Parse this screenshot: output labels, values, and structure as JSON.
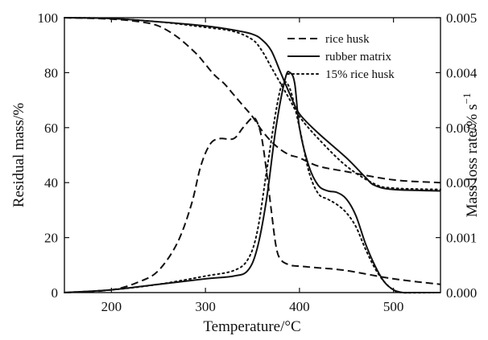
{
  "chart_data": {
    "type": "line",
    "xlabel": "Temperature/°C",
    "ylabel_left": "Residual mass/%",
    "ylabel_right": "Mass loss rate/% s",
    "ylabel_right_exponent": "−1",
    "xlim": [
      150,
      550
    ],
    "ylim_left": [
      0,
      100
    ],
    "ylim_right": [
      0,
      0.005
    ],
    "x_ticks": [
      200,
      300,
      400,
      500
    ],
    "y_left_ticks": [
      0,
      20,
      40,
      60,
      80,
      100
    ],
    "y_right_ticks": [
      "0.000",
      "0.001",
      "0.002",
      "0.003",
      "0.004",
      "0.005"
    ],
    "legend_position": "top-right",
    "series": [
      {
        "name": "rice husk",
        "style": "dashed",
        "residual_mass": {
          "x": [
            150,
            200,
            230,
            250,
            270,
            290,
            300,
            310,
            320,
            330,
            340,
            350,
            360,
            370,
            380,
            390,
            400,
            420,
            450,
            500,
            550
          ],
          "y": [
            100,
            99.5,
            98.5,
            97,
            93,
            87,
            83,
            79,
            76,
            72,
            68,
            64,
            59,
            55,
            52,
            50,
            49,
            46,
            44,
            41,
            40
          ]
        },
        "mass_loss_rate": {
          "x": [
            150,
            200,
            230,
            250,
            270,
            285,
            295,
            305,
            315,
            330,
            340,
            350,
            355,
            360,
            365,
            370,
            375,
            380,
            390,
            400,
            420,
            450,
            500,
            550
          ],
          "y": [
            0.0,
            5e-05,
            0.0002,
            0.0004,
            0.0009,
            0.0016,
            0.0023,
            0.0027,
            0.0028,
            0.0028,
            0.003,
            0.00318,
            0.0031,
            0.0028,
            0.0022,
            0.0015,
            0.00085,
            0.0006,
            0.0005,
            0.00048,
            0.00045,
            0.0004,
            0.00025,
            0.00015
          ]
        }
      },
      {
        "name": "rubber matrix",
        "style": "solid",
        "residual_mass": {
          "x": [
            150,
            200,
            250,
            300,
            330,
            350,
            360,
            370,
            380,
            390,
            400,
            420,
            450,
            470,
            480,
            500,
            550
          ],
          "y": [
            100,
            99.7,
            98.5,
            97,
            95.5,
            94,
            92,
            88,
            80,
            72,
            65,
            58,
            49,
            42,
            39,
            37.5,
            37
          ]
        },
        "mass_loss_rate": {
          "x": [
            150,
            200,
            250,
            300,
            330,
            345,
            355,
            365,
            375,
            385,
            390,
            395,
            400,
            410,
            420,
            430,
            440,
            450,
            460,
            470,
            480,
            490,
            500,
            510,
            520,
            550
          ],
          "y": [
            0.0,
            5e-05,
            0.00015,
            0.00025,
            0.0003,
            0.0004,
            0.0008,
            0.0017,
            0.003,
            0.0039,
            0.004,
            0.0038,
            0.003,
            0.0023,
            0.00195,
            0.00185,
            0.00182,
            0.0017,
            0.0014,
            0.0009,
            0.0005,
            0.0002,
            5e-05,
            0.0,
            0.0,
            0.0
          ]
        }
      },
      {
        "name": "15% rice husk",
        "style": "dotted",
        "residual_mass": {
          "x": [
            150,
            200,
            250,
            300,
            330,
            350,
            360,
            370,
            380,
            390,
            400,
            420,
            450,
            480,
            500,
            550
          ],
          "y": [
            100,
            99.7,
            98.5,
            96.5,
            95,
            92,
            88,
            82,
            76,
            70,
            64,
            56,
            46,
            39.5,
            38,
            37.5
          ]
        },
        "mass_loss_rate": {
          "x": [
            150,
            200,
            250,
            300,
            330,
            345,
            355,
            365,
            375,
            382,
            390,
            400,
            410,
            420,
            430,
            440,
            450,
            460,
            470,
            480,
            490,
            500,
            510,
            550
          ],
          "y": [
            0.0,
            5e-05,
            0.00015,
            0.0003,
            0.0004,
            0.0006,
            0.0011,
            0.0022,
            0.0033,
            0.0038,
            0.0037,
            0.003,
            0.0022,
            0.0018,
            0.0017,
            0.0016,
            0.00145,
            0.0012,
            0.0008,
            0.00045,
            0.0002,
            5e-05,
            0.0,
            0.0
          ]
        }
      }
    ]
  }
}
